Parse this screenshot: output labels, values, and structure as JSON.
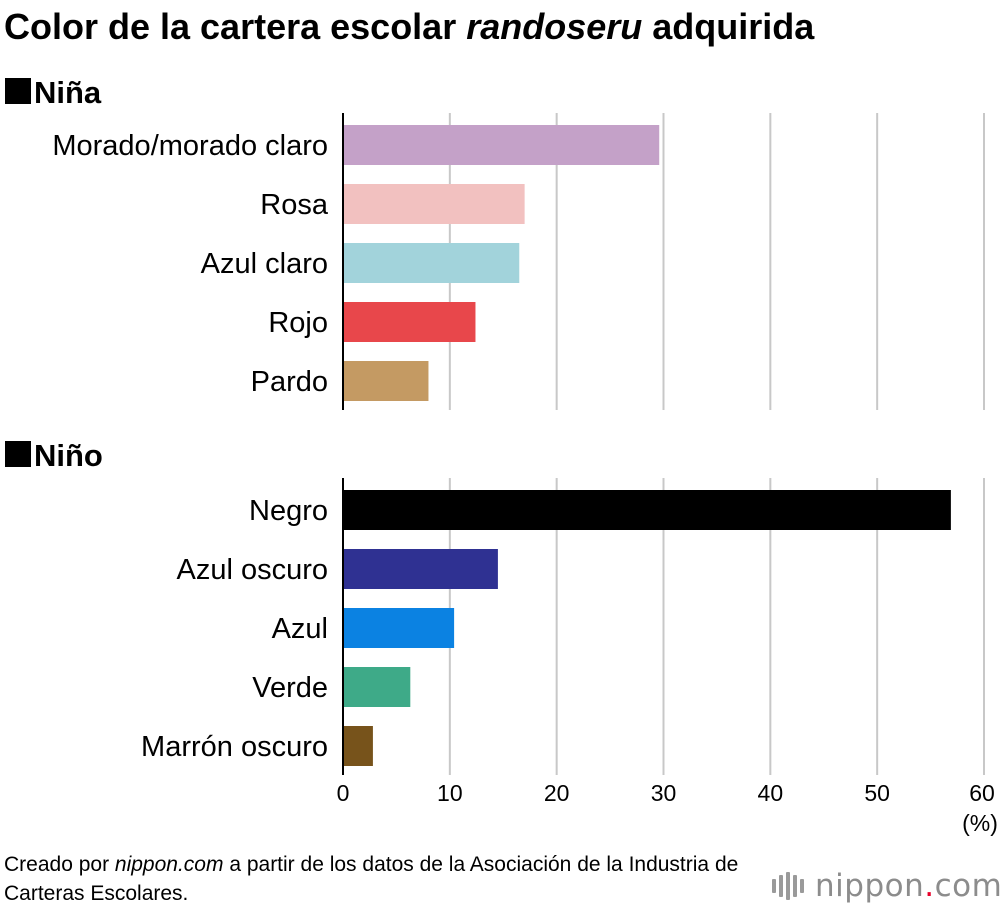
{
  "title": {
    "part1": "Color de la cartera escolar ",
    "part2": "randoseru",
    "part3": " adquirida"
  },
  "sections": [
    "Niña",
    "Niño"
  ],
  "chart_data": {
    "type": "bar",
    "orientation": "horizontal",
    "title": "Color de la cartera escolar randoseru adquirida",
    "xlabel": "(%)",
    "xlim": [
      0,
      60
    ],
    "xticks": [
      0,
      10,
      20,
      30,
      40,
      50,
      60
    ],
    "grid": true,
    "groups": [
      {
        "name": "Niña",
        "categories": [
          "Morado/morado claro",
          "Rosa",
          "Azul claro",
          "Rojo",
          "Pardo"
        ],
        "values": [
          29.6,
          17.0,
          16.5,
          12.4,
          8.0
        ],
        "colors": [
          "#c4a1c8",
          "#f2c1c0",
          "#a2d3db",
          "#e8474b",
          "#c49a63"
        ]
      },
      {
        "name": "Niño",
        "categories": [
          "Negro",
          "Azul oscuro",
          "Azul",
          "Verde",
          "Marrón oscuro"
        ],
        "values": [
          56.9,
          14.5,
          10.4,
          6.3,
          2.8
        ],
        "colors": [
          "#000000",
          "#2f3192",
          "#0b82e2",
          "#3eaa88",
          "#77531b"
        ]
      }
    ]
  },
  "source": {
    "part1": "Creado por ",
    "part2": "nippon.com",
    "part3": " a partir de los datos de la Asociación de la Industria de Carteras Escolares."
  },
  "logo": {
    "main": "nippon",
    "dot": ".",
    "suffix": "com"
  }
}
